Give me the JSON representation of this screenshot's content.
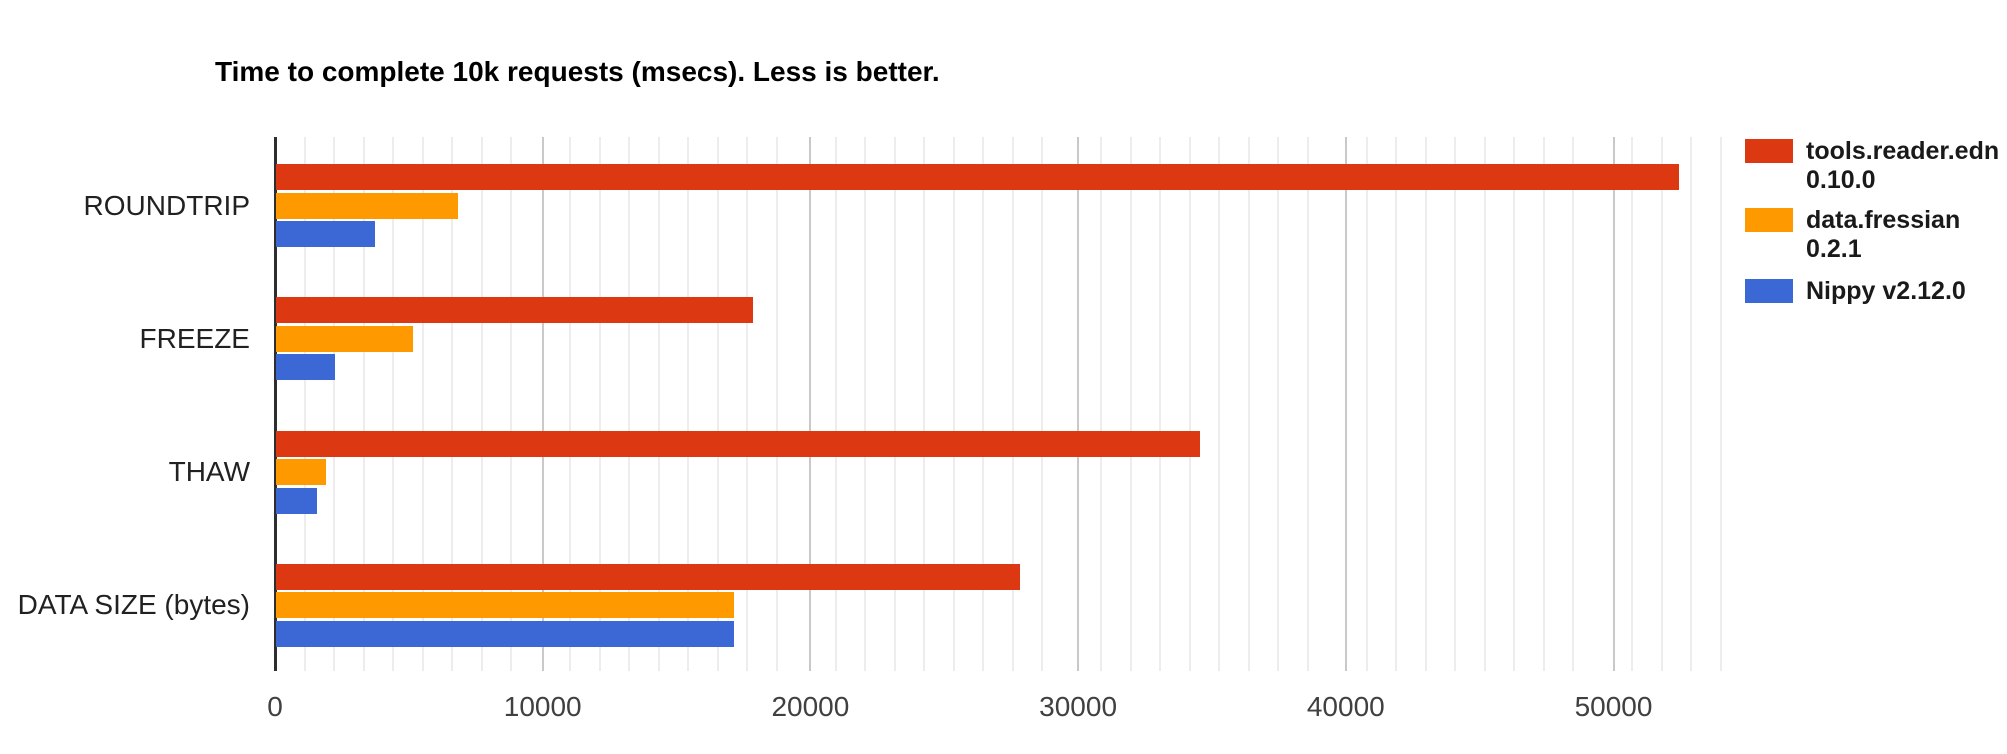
{
  "title": "Time to complete 10k requests (msecs). Less is better.",
  "colors": {
    "series_red": "#DC3912",
    "series_orange": "#FF9900",
    "series_blue": "#3B68D4",
    "axis_line": "#2e2e2e",
    "major_gridline": "#c9c9c9",
    "minor_gridline": "#ededed",
    "tick_label": "#404040",
    "category_label": "#212121",
    "title_color": "#000000",
    "background": "#ffffff"
  },
  "legend": {
    "position": "right",
    "items": [
      {
        "label": "tools.reader.edn 0.10.0",
        "color": "#DC3912"
      },
      {
        "label": "data.fressian 0.2.1",
        "color": "#FF9900"
      },
      {
        "label": "Nippy v2.12.0",
        "color": "#3B68D4"
      }
    ]
  },
  "chart_data": {
    "type": "bar",
    "orientation": "horizontal",
    "title": "Time to complete 10k requests (msecs). Less is better.",
    "categories": [
      "ROUNDTRIP",
      "FREEZE",
      "THAW",
      "DATA SIZE (bytes)"
    ],
    "series": [
      {
        "name": "tools.reader.edn 0.10.0",
        "color": "#DC3912",
        "values": [
          52400,
          17800,
          34500,
          27800
        ]
      },
      {
        "name": "data.fressian 0.2.1",
        "color": "#FF9900",
        "values": [
          6800,
          5100,
          1850,
          17100
        ]
      },
      {
        "name": "Nippy v2.12.0",
        "color": "#3B68D4",
        "values": [
          3700,
          2200,
          1550,
          17100
        ]
      }
    ],
    "xlabel": "",
    "ylabel": "",
    "xlim": [
      0,
      54000
    ],
    "x_ticks": [
      0,
      10000,
      20000,
      30000,
      40000,
      50000
    ],
    "minor_gridline_step": 1111.11,
    "grid": true,
    "legend_position": "right"
  }
}
